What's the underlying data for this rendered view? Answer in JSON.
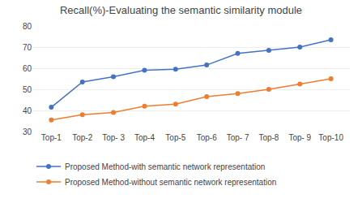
{
  "chart_data": {
    "type": "line",
    "title": "Recall(%)-Evaluating the semantic similarity module",
    "categories": [
      "Top-1",
      "Top-2",
      "Top- 3",
      "Top-4",
      "Top-5",
      "Top-6",
      "Top- 7",
      "Top-8",
      "Top- 9",
      "Top-10"
    ],
    "series": [
      {
        "name": "Proposed Method-with semantic network representation",
        "color": "#4472C4",
        "values": [
          41.5,
          53.5,
          56.0,
          59.0,
          59.5,
          61.5,
          67.0,
          68.5,
          70.0,
          73.5
        ]
      },
      {
        "name": "Proposed Method-without semantic network representation",
        "color": "#ED7D31",
        "values": [
          35.5,
          38.0,
          39.0,
          42.0,
          43.0,
          46.5,
          48.0,
          50.0,
          52.5,
          55.0
        ]
      }
    ],
    "ylim": [
      30,
      80
    ],
    "yticks": [
      30,
      40,
      50,
      60,
      70,
      80
    ],
    "grid": true,
    "legend": "bottom",
    "marker": "circle"
  }
}
